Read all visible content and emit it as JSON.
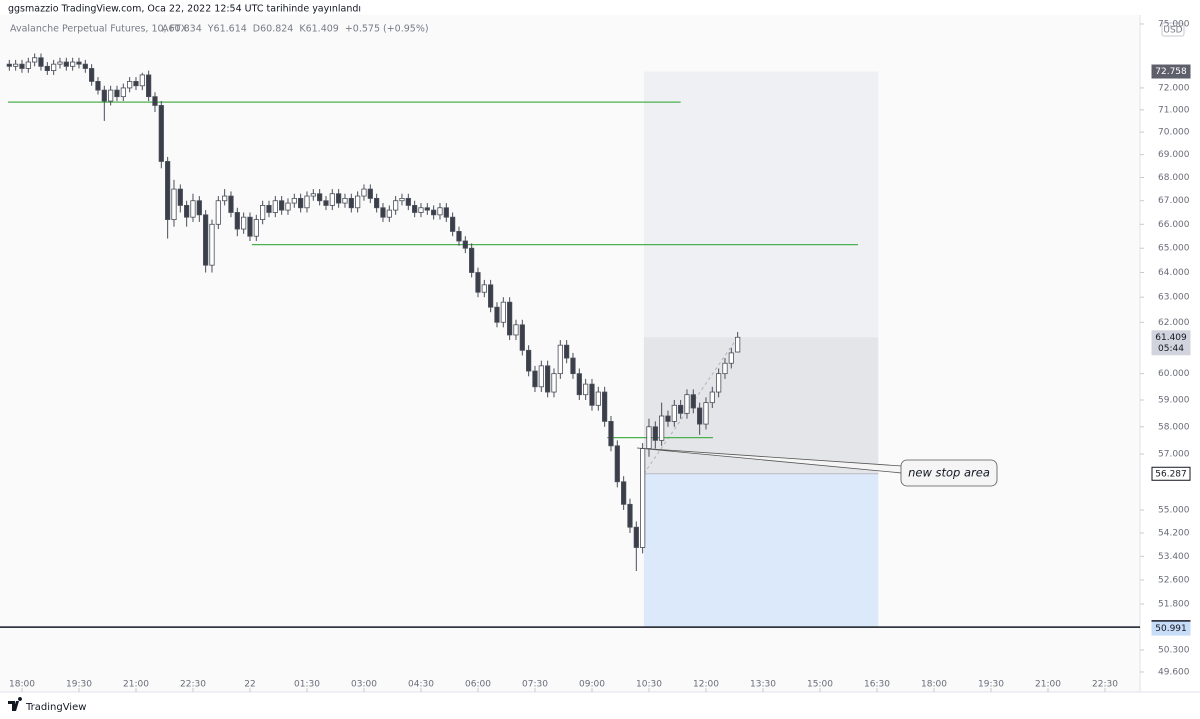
{
  "chart_data": {
    "type": "candlestick",
    "title": "ggsmazzio TradingView.com, Oca 22, 2022 12:54 UTC tarihinde yayınlandı",
    "subtitle": "Avalanche Perpetual Futures, 10, FTX",
    "legend_values": [
      "A60.834",
      "Y61.614",
      "D60.824",
      "K61.409",
      "+0.575 (+0.95%)"
    ],
    "currency": "USD",
    "brand": "TradingView",
    "log_scale": true,
    "grid": false,
    "up_color": "#ffffff",
    "down_color": "#3b3f4a",
    "wick_color": "#4a4e59",
    "x": [
      0,
      1,
      2,
      3,
      4,
      5,
      6,
      7,
      8,
      9,
      10,
      11,
      12,
      13,
      14,
      15,
      16,
      17,
      18,
      19,
      20,
      21,
      22,
      23,
      24,
      25,
      26,
      27,
      28,
      29,
      30,
      31,
      32,
      33,
      34,
      35,
      36,
      37,
      38,
      39,
      40,
      41,
      42,
      43,
      44,
      45,
      46,
      47,
      48,
      49,
      50,
      51,
      52,
      53,
      54,
      55,
      56,
      57,
      58,
      59,
      60,
      61,
      62,
      63,
      64,
      65,
      66,
      67,
      68,
      69,
      70,
      71,
      72,
      73,
      74,
      75,
      76,
      77,
      78,
      79,
      80,
      81,
      82,
      83,
      84,
      85,
      86,
      87,
      88,
      89,
      90,
      91,
      92,
      93,
      94,
      95,
      96,
      97,
      98,
      99,
      100,
      101,
      102,
      103,
      104,
      105,
      106,
      107,
      108,
      109,
      110,
      111,
      112,
      113,
      114,
      115
    ],
    "open": [
      73.1,
      73.0,
      73.1,
      72.9,
      73.2,
      73.4,
      73.0,
      72.8,
      73.1,
      73.2,
      73.0,
      73.2,
      73.1,
      72.9,
      72.3,
      71.9,
      71.4,
      71.9,
      71.6,
      72.0,
      72.3,
      72.1,
      72.6,
      71.6,
      71.2,
      68.7,
      66.2,
      67.5,
      66.8,
      66.3,
      67.0,
      66.4,
      64.3,
      66.0,
      67.0,
      67.2,
      66.5,
      65.8,
      66.3,
      65.5,
      66.2,
      66.8,
      66.5,
      67.0,
      66.6,
      66.9,
      67.1,
      66.7,
      67.2,
      67.3,
      67.0,
      66.8,
      67.3,
      66.9,
      67.1,
      66.7,
      67.2,
      67.5,
      67.1,
      66.7,
      66.3,
      66.6,
      67.0,
      67.1,
      66.8,
      66.5,
      66.7,
      66.6,
      66.4,
      66.7,
      66.3,
      65.7,
      65.3,
      65.0,
      64.0,
      63.2,
      63.5,
      62.6,
      62.0,
      62.8,
      61.5,
      61.9,
      60.9,
      60.1,
      59.5,
      60.3,
      59.3,
      60.0,
      61.1,
      60.6,
      60.0,
      59.2,
      59.6,
      58.8,
      59.3,
      58.2,
      57.3,
      56.0,
      55.2,
      54.4,
      53.7,
      57.2,
      58.0,
      57.5,
      58.4,
      58.2,
      58.8,
      58.5,
      59.2,
      58.7,
      58.1,
      58.9,
      59.3,
      60.0,
      60.4,
      60.834
    ],
    "high": [
      73.3,
      73.3,
      73.3,
      73.4,
      73.6,
      73.6,
      73.2,
      73.3,
      73.4,
      73.4,
      73.4,
      73.4,
      73.3,
      73.1,
      72.5,
      72.1,
      72.1,
      72.1,
      72.2,
      72.5,
      72.5,
      72.7,
      72.8,
      71.8,
      71.4,
      68.9,
      67.9,
      67.7,
      67.0,
      67.3,
      67.2,
      66.6,
      66.2,
      67.2,
      67.5,
      67.4,
      66.7,
      66.5,
      66.5,
      66.4,
      67.0,
      67.0,
      67.2,
      67.2,
      67.1,
      67.3,
      67.3,
      67.4,
      67.5,
      67.5,
      67.2,
      67.5,
      67.5,
      67.3,
      67.3,
      67.4,
      67.7,
      67.7,
      67.3,
      66.9,
      66.8,
      67.2,
      67.3,
      67.3,
      67.0,
      66.9,
      66.9,
      66.8,
      66.9,
      66.9,
      66.5,
      65.9,
      65.5,
      65.2,
      64.2,
      63.7,
      63.7,
      62.8,
      63.0,
      63.0,
      62.1,
      62.1,
      61.1,
      60.3,
      60.5,
      60.5,
      60.2,
      61.3,
      61.3,
      60.8,
      60.2,
      59.8,
      59.8,
      59.5,
      59.5,
      58.4,
      57.5,
      56.2,
      55.4,
      54.6,
      57.4,
      58.3,
      58.2,
      58.9,
      58.6,
      59.0,
      59.0,
      59.4,
      59.4,
      58.9,
      59.1,
      59.5,
      60.2,
      60.6,
      61.0,
      61.614
    ],
    "low": [
      72.8,
      72.8,
      72.7,
      72.7,
      73.0,
      72.8,
      72.6,
      72.6,
      72.9,
      72.8,
      72.8,
      72.9,
      72.7,
      72.1,
      71.7,
      70.5,
      71.2,
      71.4,
      71.4,
      71.8,
      71.9,
      71.9,
      71.4,
      70.9,
      68.4,
      65.4,
      65.9,
      66.5,
      65.9,
      66.1,
      66.1,
      64.0,
      64.0,
      65.8,
      66.8,
      66.3,
      65.5,
      65.6,
      65.3,
      65.3,
      66.0,
      66.3,
      66.3,
      66.4,
      66.4,
      66.7,
      66.5,
      66.5,
      67.0,
      66.8,
      66.6,
      66.6,
      66.7,
      66.7,
      66.5,
      66.5,
      67.0,
      66.9,
      66.5,
      66.1,
      66.1,
      66.4,
      66.8,
      66.6,
      66.3,
      66.3,
      66.4,
      66.2,
      66.2,
      66.1,
      65.5,
      65.1,
      64.8,
      63.8,
      63.0,
      63.0,
      62.4,
      61.8,
      61.8,
      61.3,
      61.3,
      60.7,
      59.9,
      59.3,
      59.3,
      59.1,
      59.1,
      59.8,
      60.4,
      59.8,
      59.0,
      59.0,
      58.6,
      58.6,
      58.0,
      57.1,
      55.8,
      55.0,
      54.2,
      52.9,
      53.5,
      56.9,
      57.2,
      57.3,
      58.0,
      58.0,
      58.3,
      58.3,
      58.5,
      57.7,
      57.9,
      58.7,
      59.1,
      59.8,
      60.2,
      60.824
    ],
    "close": [
      73.0,
      73.1,
      72.9,
      73.2,
      73.4,
      73.0,
      72.8,
      73.1,
      73.2,
      73.0,
      73.2,
      73.1,
      72.9,
      72.3,
      71.9,
      71.4,
      71.9,
      71.6,
      72.0,
      72.3,
      72.1,
      72.6,
      71.6,
      71.2,
      68.7,
      66.2,
      67.5,
      66.8,
      66.3,
      67.0,
      66.4,
      64.3,
      66.0,
      67.0,
      67.2,
      66.5,
      65.8,
      66.3,
      65.5,
      66.2,
      66.8,
      66.5,
      67.0,
      66.6,
      66.9,
      67.1,
      66.7,
      67.2,
      67.3,
      67.0,
      66.8,
      67.3,
      66.9,
      67.1,
      66.7,
      67.2,
      67.5,
      67.1,
      66.7,
      66.3,
      66.6,
      67.0,
      67.1,
      66.8,
      66.5,
      66.7,
      66.6,
      66.4,
      66.7,
      66.3,
      65.7,
      65.3,
      65.0,
      64.0,
      63.2,
      63.5,
      62.6,
      62.0,
      62.8,
      61.5,
      61.9,
      60.9,
      60.1,
      59.5,
      60.3,
      59.3,
      60.0,
      61.1,
      60.6,
      60.0,
      59.2,
      59.6,
      58.8,
      59.3,
      58.2,
      57.3,
      56.0,
      55.2,
      54.4,
      53.7,
      57.2,
      58.0,
      57.5,
      58.4,
      58.2,
      58.8,
      58.5,
      59.2,
      58.7,
      58.1,
      58.9,
      59.3,
      60.0,
      60.4,
      60.8,
      61.409
    ],
    "countdown": "05:44",
    "xlim": [
      -1.47,
      178.53
    ],
    "xticks": [
      {
        "value": 2,
        "label": "18:00"
      },
      {
        "value": 11,
        "label": "19:30"
      },
      {
        "value": 20,
        "label": "21:00"
      },
      {
        "value": 29,
        "label": "22:30"
      },
      {
        "value": 38,
        "label": "22"
      },
      {
        "value": 47,
        "label": "01:30"
      },
      {
        "value": 56,
        "label": "03:00"
      },
      {
        "value": 65,
        "label": "04:30"
      },
      {
        "value": 74,
        "label": "06:00"
      },
      {
        "value": 83,
        "label": "07:30"
      },
      {
        "value": 92,
        "label": "09:00"
      },
      {
        "value": 101,
        "label": "10:30"
      },
      {
        "value": 110,
        "label": "12:00"
      },
      {
        "value": 119,
        "label": "13:30"
      },
      {
        "value": 128,
        "label": "15:00"
      },
      {
        "value": 137,
        "label": "16:30"
      },
      {
        "value": 146,
        "label": "18:00"
      },
      {
        "value": 155,
        "label": "19:30"
      },
      {
        "value": 164,
        "label": "21:00"
      },
      {
        "value": 173,
        "label": "22:30"
      }
    ],
    "ylim": [
      48.97,
      75.43
    ],
    "yticks": [
      {
        "value": 75,
        "label": "75.000"
      },
      {
        "value": 72,
        "label": "72.000"
      },
      {
        "value": 71,
        "label": "71.000"
      },
      {
        "value": 70,
        "label": "70.000"
      },
      {
        "value": 69,
        "label": "69.000"
      },
      {
        "value": 68,
        "label": "68.000"
      },
      {
        "value": 67,
        "label": "67.000"
      },
      {
        "value": 66,
        "label": "66.000"
      },
      {
        "value": 65,
        "label": "65.000"
      },
      {
        "value": 64,
        "label": "64.000"
      },
      {
        "value": 63,
        "label": "63.000"
      },
      {
        "value": 62,
        "label": "62.000"
      },
      {
        "value": 60,
        "label": "60.000"
      },
      {
        "value": 59,
        "label": "59.000"
      },
      {
        "value": 58,
        "label": "58.000"
      },
      {
        "value": 57,
        "label": "57.000"
      },
      {
        "value": 55,
        "label": "55.000"
      },
      {
        "value": 54.2,
        "label": "54.200"
      },
      {
        "value": 53.4,
        "label": "53.400"
      },
      {
        "value": 52.6,
        "label": "52.600"
      },
      {
        "value": 51.8,
        "label": "51.800"
      },
      {
        "value": 50.3,
        "label": "50.300"
      },
      {
        "value": 49.6,
        "label": "49.600"
      }
    ],
    "hline_color": "#4caf50",
    "hlines": [
      {
        "value": 71.35,
        "x": [
          -0.2,
          106.0
        ]
      },
      {
        "value": 65.15,
        "x": [
          38.3,
          134.0
        ]
      },
      {
        "value": 57.6,
        "x": [
          94.4,
          111.1
        ]
      }
    ],
    "position": {
      "target": 72.758,
      "entry": 56.287,
      "stop": 51.039,
      "x": [
        100.2,
        137.2
      ]
    },
    "price_labels": [
      {
        "value": 50.991
      }
    ],
    "annotation": "new stop area"
  }
}
